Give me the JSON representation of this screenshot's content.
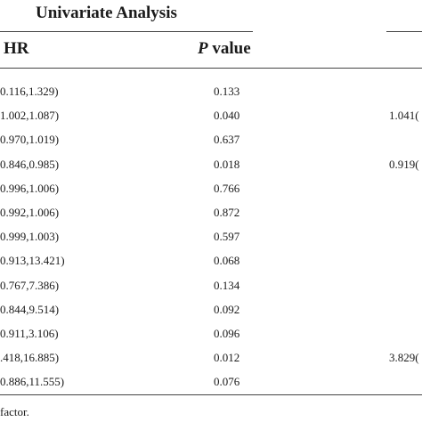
{
  "table": {
    "group_header": "Univariate Analysis",
    "col_hr": "HR",
    "col_p_italic": "P",
    "col_p_rest": " value",
    "rows": [
      {
        "hr": "0.116,1.329)",
        "p": "0.133",
        "right": ""
      },
      {
        "hr": "1.002,1.087)",
        "p": "0.040",
        "right": "1.041("
      },
      {
        "hr": "0.970,1.019)",
        "p": "0.637",
        "right": ""
      },
      {
        "hr": "0.846,0.985)",
        "p": "0.018",
        "right": "0.919("
      },
      {
        "hr": "0.996,1.006)",
        "p": "0.766",
        "right": ""
      },
      {
        "hr": "0.992,1.006)",
        "p": "0.872",
        "right": ""
      },
      {
        "hr": "0.999,1.003)",
        "p": "0.597",
        "right": ""
      },
      {
        "hr": "0.913,13.421)",
        "p": "0.068",
        "right": ""
      },
      {
        "hr": "0.767,7.386)",
        "p": "0.134",
        "right": ""
      },
      {
        "hr": "0.844,9.514)",
        "p": "0.092",
        "right": ""
      },
      {
        "hr": "0.911,3.106)",
        "p": "0.096",
        "right": ""
      },
      {
        "hr": ".418,16.885)",
        "p": "0.012",
        "right": "3.829("
      },
      {
        "hr": "0.886,11.555)",
        "p": "0.076",
        "right": ""
      }
    ],
    "footnote": "factor."
  }
}
